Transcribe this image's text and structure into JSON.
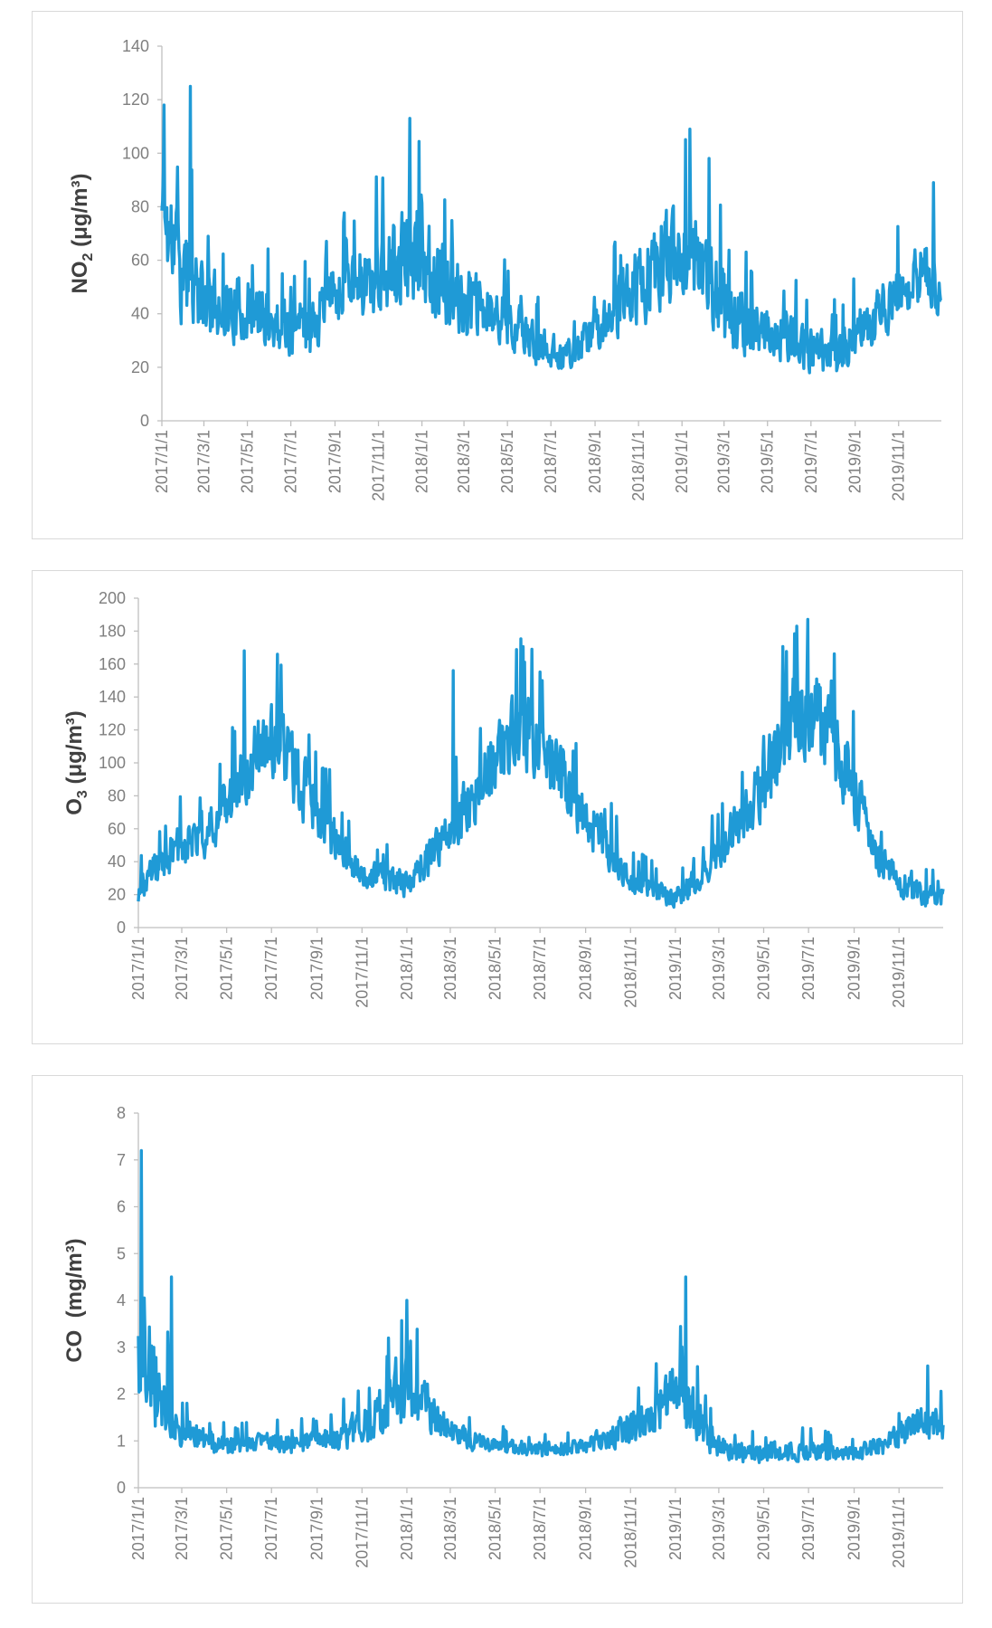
{
  "chart_data": [
    {
      "type": "line",
      "series_name": "NO2",
      "ylabel_main": "NO",
      "ylabel_sub": "2",
      "ylabel_unit": "(μg/m³)",
      "ylim": [
        0,
        140
      ],
      "yticks": [
        0,
        20,
        40,
        60,
        80,
        100,
        120,
        140
      ],
      "x_range": [
        "2017/1/1",
        "2019/12/31"
      ],
      "xticks": [
        "2017/1/1",
        "2017/3/1",
        "2017/5/1",
        "2017/7/1",
        "2017/9/1",
        "2017/11/1",
        "2018/1/1",
        "2018/3/1",
        "2018/5/1",
        "2018/7/1",
        "2018/9/1",
        "2018/11/1",
        "2019/1/1",
        "2019/3/1",
        "2019/5/1",
        "2019/7/1",
        "2019/9/1",
        "2019/11/1"
      ],
      "color": "#1f9ad6",
      "approx_envelope_by_month": {
        "x_month_index": [
          0,
          1,
          2,
          3,
          4,
          5,
          6,
          7,
          8,
          9,
          10,
          11,
          12,
          13,
          14,
          15,
          16,
          17,
          18,
          19,
          20,
          21,
          22,
          23,
          24,
          25,
          26,
          27,
          28,
          29,
          30,
          31,
          32,
          33,
          34,
          35,
          36
        ],
        "center": [
          78,
          55,
          44,
          42,
          41,
          37,
          35,
          36,
          48,
          52,
          55,
          58,
          64,
          50,
          44,
          40,
          38,
          30,
          26,
          25,
          34,
          42,
          50,
          58,
          66,
          60,
          40,
          36,
          33,
          30,
          27,
          25,
          32,
          38,
          48,
          55,
          50
        ],
        "amplitude": [
          30,
          25,
          16,
          15,
          14,
          13,
          12,
          12,
          14,
          15,
          20,
          22,
          25,
          18,
          16,
          14,
          12,
          10,
          8,
          7,
          10,
          14,
          18,
          20,
          22,
          22,
          18,
          14,
          13,
          12,
          11,
          10,
          11,
          12,
          14,
          16,
          16
        ]
      },
      "peaks": [
        {
          "date": "2017/1/4",
          "value": 118
        },
        {
          "date": "2017/2/10",
          "value": 125
        },
        {
          "date": "2017/12/15",
          "value": 113
        },
        {
          "date": "2019/1/12",
          "value": 109
        },
        {
          "date": "2019/12/20",
          "value": 89
        }
      ]
    },
    {
      "type": "line",
      "series_name": "O3",
      "ylabel_main": "O",
      "ylabel_sub": "3",
      "ylabel_unit": "(μg/m³)",
      "ylim": [
        0,
        200
      ],
      "yticks": [
        0,
        20,
        40,
        60,
        80,
        100,
        120,
        140,
        160,
        180,
        200
      ],
      "x_range": [
        "2017/1/1",
        "2019/12/31"
      ],
      "xticks": [
        "2017/1/1",
        "2017/3/1",
        "2017/5/1",
        "2017/7/1",
        "2017/9/1",
        "2017/11/1",
        "2018/1/1",
        "2018/3/1",
        "2018/5/1",
        "2018/7/1",
        "2018/9/1",
        "2018/11/1",
        "2019/1/1",
        "2019/3/1",
        "2019/5/1",
        "2019/7/1",
        "2019/9/1",
        "2019/11/1"
      ],
      "color": "#1f9ad6",
      "approx_envelope_by_month": {
        "x_month_index": [
          0,
          1,
          2,
          3,
          4,
          5,
          6,
          7,
          8,
          9,
          10,
          11,
          12,
          13,
          14,
          15,
          16,
          17,
          18,
          19,
          20,
          21,
          22,
          23,
          24,
          25,
          26,
          27,
          28,
          29,
          30,
          31,
          32,
          33,
          34,
          35,
          36
        ],
        "center": [
          22,
          40,
          50,
          58,
          78,
          100,
          115,
          95,
          70,
          50,
          32,
          30,
          26,
          42,
          62,
          80,
          100,
          120,
          108,
          88,
          68,
          48,
          30,
          24,
          18,
          30,
          48,
          68,
          88,
          120,
          135,
          112,
          85,
          45,
          28,
          20,
          18
        ],
        "amplitude": [
          10,
          14,
          16,
          18,
          22,
          26,
          30,
          26,
          22,
          16,
          10,
          10,
          10,
          14,
          18,
          22,
          26,
          30,
          28,
          24,
          20,
          16,
          10,
          8,
          8,
          10,
          14,
          18,
          24,
          32,
          34,
          30,
          24,
          14,
          10,
          8,
          8
        ]
      },
      "peaks": [
        {
          "date": "2017/5/25",
          "value": 168
        },
        {
          "date": "2018/3/5",
          "value": 156
        },
        {
          "date": "2018/6/20",
          "value": 169
        },
        {
          "date": "2019/6/15",
          "value": 183
        }
      ]
    },
    {
      "type": "line",
      "series_name": "CO",
      "ylabel_main": "CO",
      "ylabel_sub": "",
      "ylabel_unit": "(mg/m³)",
      "ylim": [
        0,
        8
      ],
      "yticks": [
        0,
        1,
        2,
        3,
        4,
        5,
        6,
        7,
        8
      ],
      "x_range": [
        "2017/1/1",
        "2019/12/31"
      ],
      "xticks": [
        "2017/1/1",
        "2017/3/1",
        "2017/5/1",
        "2017/7/1",
        "2017/9/1",
        "2017/11/1",
        "2018/1/1",
        "2018/3/1",
        "2018/5/1",
        "2018/7/1",
        "2018/9/1",
        "2018/11/1",
        "2019/1/1",
        "2019/3/1",
        "2019/5/1",
        "2019/7/1",
        "2019/9/1",
        "2019/11/1"
      ],
      "color": "#1f9ad6",
      "approx_envelope_by_month": {
        "x_month_index": [
          0,
          1,
          2,
          3,
          4,
          5,
          6,
          7,
          8,
          9,
          10,
          11,
          12,
          13,
          14,
          15,
          16,
          17,
          18,
          19,
          20,
          21,
          22,
          23,
          24,
          25,
          26,
          27,
          28,
          29,
          30,
          31,
          32,
          33,
          34,
          35,
          36
        ],
        "center": [
          3.2,
          1.9,
          1.2,
          1.0,
          0.9,
          0.95,
          0.95,
          0.9,
          1.0,
          1.1,
          1.3,
          1.6,
          2.1,
          1.7,
          1.2,
          1.0,
          0.9,
          0.85,
          0.8,
          0.85,
          0.9,
          1.1,
          1.3,
          1.6,
          2.0,
          1.5,
          0.8,
          0.75,
          0.75,
          0.8,
          0.8,
          0.75,
          0.75,
          0.85,
          1.1,
          1.4,
          1.4
        ],
        "amplitude": [
          1.6,
          1.0,
          0.4,
          0.3,
          0.25,
          0.25,
          0.25,
          0.25,
          0.3,
          0.35,
          0.5,
          0.7,
          0.8,
          0.6,
          0.3,
          0.25,
          0.2,
          0.2,
          0.2,
          0.2,
          0.25,
          0.35,
          0.5,
          0.6,
          0.8,
          0.6,
          0.3,
          0.25,
          0.25,
          0.25,
          0.25,
          0.2,
          0.2,
          0.25,
          0.35,
          0.45,
          0.45
        ]
      },
      "peaks": [
        {
          "date": "2017/1/5",
          "value": 7.2
        },
        {
          "date": "2017/2/15",
          "value": 4.5
        },
        {
          "date": "2018/1/1",
          "value": 4.0
        },
        {
          "date": "2019/1/15",
          "value": 4.5
        },
        {
          "date": "2019/12/10",
          "value": 2.6
        }
      ]
    }
  ]
}
